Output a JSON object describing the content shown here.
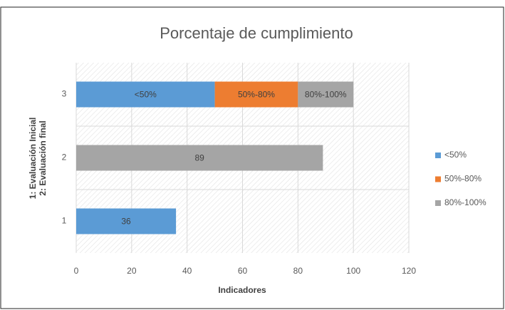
{
  "chart_data": {
    "type": "stacked_barh",
    "title": "Porcentaje de cumplimiento",
    "x_label": "Indicadores",
    "y_label": [
      "1: Evaluación Inicial",
      "2: Evaluación final"
    ],
    "categories": [
      "1",
      "2",
      "3"
    ],
    "series": [
      {
        "name": "<50%",
        "color": "#5b9bd5",
        "values": [
          36,
          null,
          50
        ]
      },
      {
        "name": "50%-80%",
        "color": "#ed7d31",
        "values": [
          null,
          null,
          30
        ]
      },
      {
        "name": "80%-100%",
        "color": "#a5a5a5",
        "values": [
          null,
          89,
          20
        ]
      }
    ],
    "xlim": [
      0,
      120
    ],
    "xticks": [
      0,
      20,
      40,
      60,
      80,
      100,
      120
    ],
    "grid": true,
    "legend": "right"
  }
}
